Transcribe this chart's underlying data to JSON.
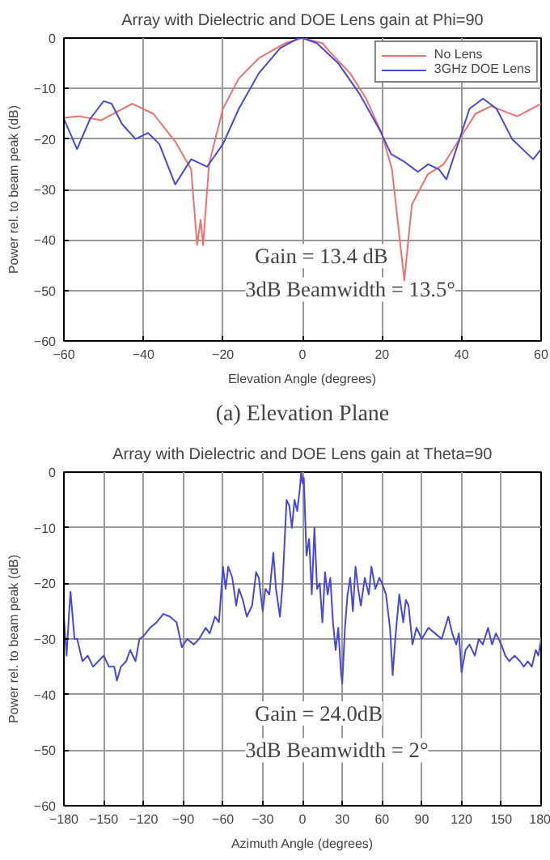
{
  "chart_data": [
    {
      "type": "line",
      "title": "Array with Dielectric and DOE Lens gain at Phi=90",
      "xlabel": "Elevation Angle (degrees)",
      "ylabel": "Power rel. to beam peak (dB)",
      "xlim": [
        -60,
        60
      ],
      "ylim": [
        -60,
        0
      ],
      "xticks": [
        -60,
        -40,
        -20,
        0,
        20,
        40,
        60
      ],
      "yticks": [
        -60,
        -50,
        -40,
        -30,
        -20,
        -10,
        0
      ],
      "grid": true,
      "legend": "top right",
      "annotations": [
        "Gain = 13.4 dB",
        "3dB Beamwidth = 13.5°",
        "(a) Elevation Plane"
      ],
      "series": [
        {
          "name": "No Lens",
          "color": "#f07070",
          "x": [
            -60,
            -56,
            -50.7,
            -42.8,
            -37.5,
            -32,
            -28,
            -26.5,
            -25.6,
            -25,
            -23.5,
            -20,
            -16,
            -11,
            -4.3,
            0,
            5,
            6.6,
            12,
            16,
            20,
            22.5,
            25.6,
            27.5,
            31.5,
            35.5,
            39.5,
            43.5,
            47.4,
            54,
            60
          ],
          "values": [
            -15.8,
            -15.5,
            -16.3,
            -13,
            -15,
            -20.5,
            -26,
            -41,
            -36,
            -41,
            -25,
            -14,
            -8,
            -4,
            -1,
            0,
            -1,
            -2.5,
            -7,
            -12,
            -19,
            -26,
            -48,
            -33,
            -27,
            -25,
            -20,
            -15,
            -13.5,
            -15.5,
            -13
          ]
        },
        {
          "name": "3GHz DOE Lens",
          "color": "#4848d8",
          "x": [
            -60,
            -56.7,
            -53.4,
            -50,
            -48,
            -45.4,
            -42,
            -38.8,
            -36,
            -32,
            -28,
            -24,
            -20,
            -16,
            -11,
            -5.6,
            -1,
            0,
            3.6,
            9,
            14.3,
            19.6,
            22.3,
            25.6,
            29,
            31.6,
            34.3,
            36.2,
            39.5,
            42,
            45.4,
            48.8,
            52.7,
            58,
            60
          ],
          "values": [
            -16,
            -22,
            -16,
            -12.5,
            -13,
            -17,
            -20,
            -18.8,
            -21,
            -29,
            -24,
            -25.5,
            -21,
            -14,
            -7,
            -2,
            0,
            0,
            -1,
            -5,
            -11,
            -18.5,
            -23,
            -24.5,
            -26.5,
            -25,
            -26,
            -28,
            -20,
            -14,
            -12,
            -14,
            -20,
            -24,
            -22
          ]
        }
      ]
    },
    {
      "type": "line",
      "title": "Array with Dielectric and DOE Lens gain at Theta=90",
      "xlabel": "Azimuth Angle (degrees)",
      "ylabel": "Power rel. to beam peak (dB)",
      "xlim": [
        -180,
        180
      ],
      "ylim": [
        -60,
        0
      ],
      "xticks": [
        -180,
        -150,
        -120,
        -90,
        -60,
        -30,
        0,
        30,
        60,
        90,
        120,
        150,
        180
      ],
      "yticks": [
        -60,
        -50,
        -40,
        -30,
        -20,
        -10,
        0
      ],
      "grid": true,
      "annotations": [
        "Gain = 24.0dB",
        "3dB Beamwidth = 2°"
      ],
      "series": [
        {
          "color": "#4848d8",
          "x": [
            -180,
            -178,
            -176,
            -175,
            -172,
            -170,
            -166,
            -162,
            -158,
            -154,
            -150,
            -146,
            -142,
            -140,
            -137,
            -133,
            -130,
            -126,
            -123,
            -120,
            -115,
            -110,
            -105,
            -100,
            -95,
            -91,
            -87,
            -82,
            -78,
            -73,
            -70,
            -66,
            -63,
            -60,
            -58,
            -56,
            -53,
            -50,
            -48,
            -45,
            -42,
            -38,
            -35,
            -33,
            -30,
            -28,
            -25,
            -22,
            -20,
            -17,
            -15,
            -12,
            -10,
            -8,
            -6,
            -4,
            -2,
            -1,
            0,
            1,
            3,
            5,
            7,
            9,
            11,
            13,
            15,
            17,
            19,
            21,
            23,
            25,
            27,
            29,
            30,
            32,
            34,
            36,
            38,
            40,
            42,
            44,
            47,
            50,
            52,
            55,
            58,
            60,
            63,
            66,
            68,
            70,
            73,
            76,
            78,
            80,
            83,
            86,
            90,
            95,
            100,
            105,
            110,
            113,
            116,
            118,
            120,
            123,
            126,
            130,
            133,
            136,
            140,
            143,
            146,
            150,
            153,
            156,
            160,
            164,
            167,
            170,
            173,
            176,
            178,
            180
          ],
          "values": [
            -26,
            -33,
            -25,
            -21.5,
            -30,
            -30,
            -34,
            -33,
            -35,
            -34,
            -33,
            -35,
            -35,
            -37.5,
            -35,
            -34,
            -32,
            -34,
            -30,
            -29.5,
            -28,
            -27,
            -25.5,
            -26,
            -27,
            -31.5,
            -30,
            -31,
            -30,
            -28,
            -29,
            -26,
            -27,
            -17,
            -21,
            -17,
            -19,
            -24,
            -21,
            -23,
            -26,
            -24,
            -18,
            -19,
            -25,
            -21,
            -22,
            -14.5,
            -21,
            -26,
            -20,
            -5,
            -6,
            -10,
            -5,
            -7,
            -3,
            0,
            -2,
            -1,
            -15,
            -12,
            -22,
            -10,
            -21,
            -20,
            -27,
            -18,
            -22,
            -19,
            -27,
            -32,
            -28,
            -36,
            -38,
            -28,
            -22,
            -19,
            -25,
            -17,
            -21,
            -24,
            -19,
            -22,
            -17,
            -21,
            -19,
            -20,
            -22,
            -28,
            -36.5,
            -30,
            -22,
            -27,
            -23,
            -24,
            -31,
            -28,
            -30,
            -28,
            -29,
            -30,
            -26,
            -29,
            -31,
            -29,
            -36,
            -32,
            -31,
            -33,
            -30,
            -31,
            -28,
            -31,
            -29,
            -31,
            -33,
            -34,
            -33,
            -34,
            -35,
            -34,
            -35,
            -32,
            -33,
            -30
          ]
        }
      ]
    }
  ]
}
